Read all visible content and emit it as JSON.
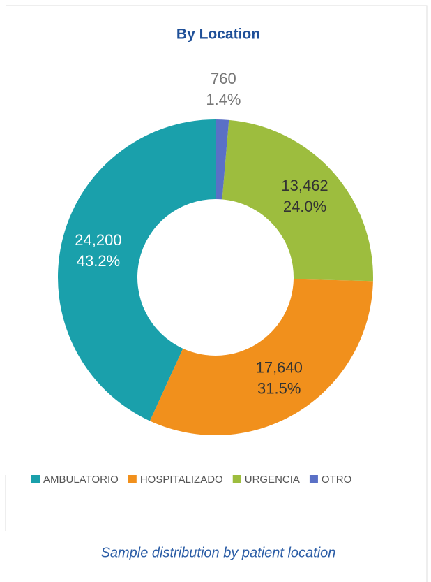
{
  "chart_data": {
    "type": "donut",
    "title": "By Location",
    "categories": [
      "AMBULATORIO",
      "HOSPITALIZADO",
      "URGENCIA",
      "OTRO"
    ],
    "values": [
      24200,
      17640,
      13462,
      760
    ],
    "value_labels": [
      "24,200",
      "17,640",
      "13,462",
      "760"
    ],
    "percent_labels": [
      "43.2%",
      "31.5%",
      "24.0%",
      "1.4%"
    ],
    "colors": [
      "#1aa0ab",
      "#f1901c",
      "#9dbd3e",
      "#5a70c6"
    ],
    "caption": "Sample distribution by patient location"
  }
}
